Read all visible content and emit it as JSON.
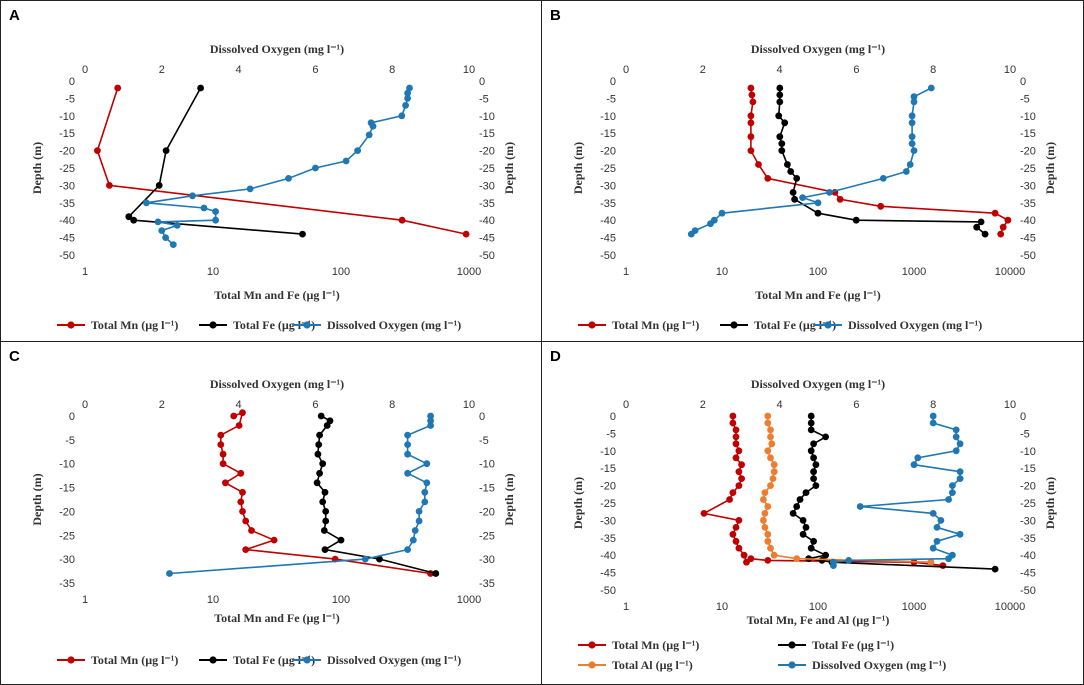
{
  "chart_data": [
    {
      "panel": "A",
      "type": "line",
      "top_axis_label": "Dissolved Oxygen (mg l⁻¹)",
      "bottom_axis_label": "Total Mn and Fe (µg l⁻¹)",
      "left_axis_label": "Depth (m)",
      "right_axis_label": "Depth (m)",
      "top_range": [
        0,
        10
      ],
      "top_ticks": [
        "0",
        "2",
        "4",
        "6",
        "8",
        "10"
      ],
      "bottom_range": [
        1,
        1000
      ],
      "bottom_ticks": [
        "1",
        "10",
        "100",
        "1000"
      ],
      "depth_range": [
        -50,
        0
      ],
      "depth_ticks": [
        "0",
        "-5",
        "-10",
        "-15",
        "-20",
        "-25",
        "-30",
        "-35",
        "-40",
        "-45",
        "-50"
      ],
      "series": [
        {
          "name": "Total Mn (µg l⁻¹)",
          "color": "#c00000",
          "axis": "bottom",
          "x": [
            1.8,
            1.25,
            1.55,
            300,
            950
          ],
          "y": [
            -2,
            -20,
            -30,
            -40,
            -44
          ]
        },
        {
          "name": "Total Fe (µg l⁻¹)",
          "color": "#000000",
          "axis": "bottom",
          "x": [
            8,
            4.3,
            3.8,
            2.2,
            2.4,
            50
          ],
          "y": [
            -2,
            -20,
            -30,
            -39,
            -40,
            -44
          ]
        },
        {
          "name": "Dissolved Oxygen (mg l⁻¹)",
          "color": "#1f77b4",
          "axis": "top",
          "x": [
            8.45,
            8.4,
            8.4,
            8.35,
            8.25,
            7.45,
            7.5,
            7.4,
            7.1,
            6.8,
            6.0,
            5.3,
            4.3,
            2.8,
            1.6,
            3.1,
            3.4,
            3.4,
            1.9,
            2.4,
            2.0,
            2.1,
            2.3
          ],
          "y": [
            -2,
            -3.5,
            -5,
            -7,
            -10,
            -12,
            -13,
            -15.5,
            -20,
            -23,
            -25,
            -28,
            -31,
            -33,
            -35,
            -36.5,
            -37.5,
            -40,
            -40.5,
            -41.5,
            -43,
            -45,
            -47
          ]
        }
      ],
      "legend": [
        {
          "label": "Total Mn (µg l⁻¹)",
          "color": "#c00000"
        },
        {
          "label": "Total Fe (µg l⁻¹)",
          "color": "#000000"
        },
        {
          "label": "Dissolved Oxygen (mg l⁻¹)",
          "color": "#1f77b4"
        }
      ]
    },
    {
      "panel": "B",
      "type": "line",
      "top_axis_label": "Dissolved Oxygen (mg l⁻¹)",
      "bottom_axis_label": "Total Mn and Fe (µg l⁻¹)",
      "left_axis_label": "Depth (m)",
      "right_axis_label": "Depth (m)",
      "top_range": [
        0,
        10
      ],
      "top_ticks": [
        "0",
        "2",
        "4",
        "6",
        "8",
        "10"
      ],
      "bottom_range": [
        1,
        10000
      ],
      "bottom_ticks": [
        "1",
        "10",
        "100",
        "1000",
        "10000"
      ],
      "depth_range": [
        -50,
        0
      ],
      "depth_ticks": [
        "0",
        "-5",
        "-10",
        "-15",
        "-20",
        "-25",
        "-30",
        "-35",
        "-40",
        "-45",
        "-50"
      ],
      "series": [
        {
          "name": "Total Mn (µg l⁻¹)",
          "color": "#c00000",
          "axis": "bottom",
          "x": [
            20,
            20.5,
            21,
            20,
            20,
            20,
            20,
            24,
            30,
            150,
            170,
            450,
            7000,
            9500,
            8500,
            8000
          ],
          "y": [
            -2,
            -4,
            -6,
            -10,
            -12,
            -16,
            -20,
            -24,
            -28,
            -32,
            -34,
            -36,
            -38,
            -40,
            -42,
            -44
          ]
        },
        {
          "name": "Total Fe (µg l⁻¹)",
          "color": "#000000",
          "axis": "bottom",
          "x": [
            40,
            40,
            40,
            39,
            45,
            40,
            42,
            42,
            48,
            52,
            60,
            55,
            57,
            100,
            250,
            5000,
            4500,
            5500
          ],
          "y": [
            -2,
            -4,
            -6,
            -10,
            -12,
            -16,
            -18,
            -20,
            -24,
            -26,
            -28,
            -32,
            -34,
            -38,
            -40,
            -40.5,
            -42,
            -44
          ]
        },
        {
          "name": "Dissolved Oxygen (mg l⁻¹)",
          "color": "#1f77b4",
          "axis": "top",
          "x": [
            7.95,
            7.5,
            7.5,
            7.45,
            7.45,
            7.45,
            7.45,
            7.5,
            7.4,
            7.3,
            6.7,
            5.3,
            4.6,
            5.0,
            2.5,
            2.3,
            2.2,
            1.8,
            1.7
          ],
          "y": [
            -2,
            -4.5,
            -6,
            -10,
            -12,
            -16,
            -18,
            -20,
            -24,
            -26,
            -28,
            -32,
            -33.5,
            -35,
            -38,
            -40,
            -41,
            -43,
            -44
          ]
        }
      ],
      "legend": [
        {
          "label": "Total Mn (µg l⁻¹)",
          "color": "#c00000"
        },
        {
          "label": "Total Fe (µg l⁻¹)",
          "color": "#000000"
        },
        {
          "label": "Dissolved Oxygen (mg l⁻¹)",
          "color": "#1f77b4"
        }
      ]
    },
    {
      "panel": "C",
      "type": "line",
      "top_axis_label": "Dissolved Oxygen (mg l⁻¹)",
      "bottom_axis_label": "Total Mn and Fe (µg l⁻¹)",
      "left_axis_label": "Depth (m)",
      "right_axis_label": "Depth (m)",
      "top_range": [
        0,
        10
      ],
      "top_ticks": [
        "0",
        "2",
        "4",
        "6",
        "8",
        "10"
      ],
      "bottom_range": [
        1,
        1000
      ],
      "bottom_ticks": [
        "1",
        "10",
        "100",
        "1000"
      ],
      "depth_range": [
        -35,
        0
      ],
      "depth_ticks": [
        "0",
        "-5",
        "-10",
        "-15",
        "-20",
        "-25",
        "-30",
        "-35"
      ],
      "series": [
        {
          "name": "Total Mn (µg l⁻¹)",
          "color": "#c00000",
          "axis": "bottom",
          "x": [
            14.5,
            17,
            16,
            11.5,
            11.5,
            12,
            12,
            16.5,
            12.5,
            17,
            16.5,
            17,
            18,
            20,
            30,
            18,
            90,
            500
          ],
          "y": [
            0,
            0.7,
            -2,
            -4,
            -6,
            -8,
            -10,
            -12,
            -14,
            -16,
            -18,
            -20,
            -22,
            -24,
            -26,
            -28,
            -30,
            -33
          ]
        },
        {
          "name": "Total Fe (µg l⁻¹)",
          "color": "#000000",
          "axis": "bottom",
          "x": [
            70,
            82,
            78,
            68,
            67,
            66,
            72,
            68,
            65,
            75,
            72,
            76,
            76,
            74,
            100,
            75,
            200,
            550
          ],
          "y": [
            0,
            -1,
            -2,
            -4,
            -6,
            -8,
            -10,
            -12,
            -14,
            -16,
            -18,
            -20,
            -22,
            -24,
            -26,
            -28,
            -30,
            -33
          ]
        },
        {
          "name": "Dissolved Oxygen (mg l⁻¹)",
          "color": "#1f77b4",
          "axis": "top",
          "x": [
            9.0,
            9.0,
            9.0,
            8.4,
            8.4,
            8.4,
            8.9,
            8.4,
            8.9,
            8.85,
            8.85,
            8.7,
            8.7,
            8.6,
            8.55,
            8.4,
            7.3,
            2.2
          ],
          "y": [
            0,
            -1,
            -2,
            -4,
            -6,
            -8,
            -10,
            -12,
            -14,
            -16,
            -18,
            -20,
            -22,
            -24,
            -26,
            -28,
            -30,
            -33
          ]
        }
      ],
      "legend": [
        {
          "label": "Total Mn (µg l⁻¹)",
          "color": "#c00000"
        },
        {
          "label": "Total Fe (µg l⁻¹)",
          "color": "#000000"
        },
        {
          "label": "Dissolved Oxygen (mg l⁻¹)",
          "color": "#1f77b4"
        }
      ]
    },
    {
      "panel": "D",
      "type": "line",
      "top_axis_label": "Dissolved Oxygen (mg l⁻¹)",
      "bottom_axis_label": "Total Mn, Fe and Al (µg l⁻¹)",
      "left_axis_label": "Depth (m)",
      "right_axis_label": "Depth (m)",
      "top_range": [
        0,
        10
      ],
      "top_ticks": [
        "0",
        "2",
        "4",
        "6",
        "8",
        "10"
      ],
      "bottom_range": [
        1,
        10000
      ],
      "bottom_ticks": [
        "1",
        "10",
        "100",
        "1000",
        "10000"
      ],
      "depth_range": [
        -50,
        0
      ],
      "depth_ticks": [
        "0",
        "-5",
        "-10",
        "-15",
        "-20",
        "-25",
        "-30",
        "-35",
        "-40",
        "-45",
        "-50"
      ],
      "series": [
        {
          "name": "Total Mn (µg l⁻¹)",
          "color": "#c00000",
          "axis": "bottom",
          "x": [
            13,
            13,
            14,
            14,
            14,
            15,
            14,
            16,
            15,
            16,
            15,
            13,
            12,
            6.5,
            15,
            14,
            13,
            14,
            15,
            17,
            18,
            20,
            30,
            1000,
            2000
          ],
          "y": [
            0,
            -2,
            -4,
            -6,
            -8,
            -10,
            -12,
            -14,
            -16,
            -18,
            -20,
            -22,
            -24,
            -28,
            -30,
            -32,
            -34,
            -36,
            -38,
            -40,
            -42,
            -41,
            -41.5,
            -42,
            -43
          ]
        },
        {
          "name": "Total Fe (µg l⁻¹)",
          "color": "#000000",
          "axis": "bottom",
          "x": [
            85,
            85,
            85,
            120,
            90,
            85,
            90,
            95,
            90,
            90,
            95,
            75,
            65,
            60,
            55,
            70,
            75,
            70,
            90,
            85,
            120,
            80,
            110,
            140,
            7000
          ],
          "y": [
            0,
            -2,
            -4,
            -6,
            -8,
            -10,
            -12,
            -14,
            -16,
            -18,
            -20,
            -22,
            -24,
            -26,
            -28,
            -30,
            -32,
            -34,
            -36,
            -38,
            -40,
            -41,
            -41.5,
            -42,
            -44
          ]
        },
        {
          "name": "Total Al (µg l⁻¹)",
          "color": "#ed7d31",
          "axis": "bottom",
          "x": [
            30,
            30,
            32,
            32,
            33,
            30,
            32,
            35,
            35,
            34,
            32,
            28,
            27,
            30,
            28,
            27,
            28,
            30,
            30,
            32,
            35,
            60,
            1500
          ],
          "y": [
            0,
            -2,
            -4,
            -6,
            -8,
            -10,
            -12,
            -14,
            -16,
            -18,
            -20,
            -22,
            -24,
            -26,
            -28,
            -30,
            -32,
            -34,
            -36,
            -38,
            -40,
            -41,
            -42
          ]
        },
        {
          "name": "Dissolved Oxygen (mg l⁻¹)",
          "color": "#1f77b4",
          "axis": "top",
          "x": [
            8.0,
            8.0,
            8.6,
            8.6,
            8.7,
            8.6,
            7.6,
            7.5,
            8.7,
            8.7,
            8.5,
            8.5,
            8.4,
            6.1,
            8.0,
            8.2,
            8.1,
            8.7,
            8.1,
            8.0,
            8.5,
            8.4,
            5.8,
            5.4,
            5.4
          ],
          "y": [
            0,
            -2,
            -4,
            -6,
            -8,
            -10,
            -12,
            -14,
            -16,
            -18,
            -20,
            -22,
            -24,
            -26,
            -28,
            -30,
            -32,
            -34,
            -36,
            -38,
            -40,
            -41,
            -41.5,
            -42,
            -43
          ]
        }
      ],
      "legend": [
        {
          "label": "Total Mn (µg l⁻¹)",
          "color": "#c00000"
        },
        {
          "label": "Total Fe (µg l⁻¹)",
          "color": "#000000"
        },
        {
          "label": "Total Al (µg l⁻¹)",
          "color": "#ed7d31"
        },
        {
          "label": "Dissolved Oxygen (mg l⁻¹)",
          "color": "#1f77b4"
        }
      ]
    }
  ]
}
